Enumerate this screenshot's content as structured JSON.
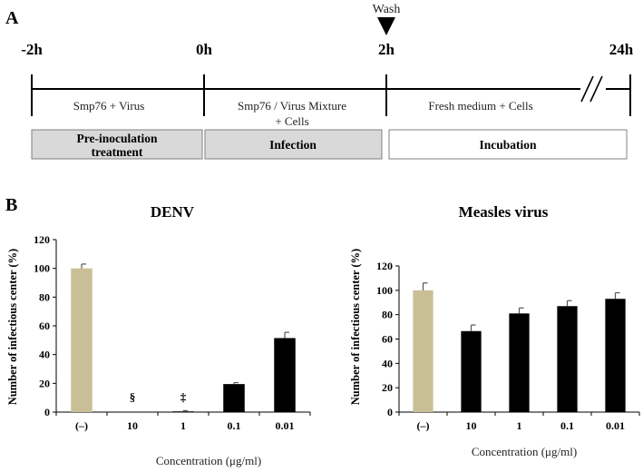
{
  "panel_a": {
    "label": "A",
    "wash_label": "Wash",
    "times": [
      "-2h",
      "0h",
      "2h",
      "24h"
    ],
    "segment_texts": [
      [
        "Smp76 + Virus"
      ],
      [
        "Smp76 / Virus Mixture",
        "+ Cells"
      ],
      [
        "Fresh medium + Cells"
      ]
    ],
    "phases": [
      {
        "lines": [
          "Pre-inoculation",
          "treatment"
        ],
        "fill": "#d9d9d9"
      },
      {
        "lines": [
          "Infection"
        ],
        "fill": "#d9d9d9"
      },
      {
        "lines": [
          "Incubation"
        ],
        "fill": "#ffffff"
      }
    ]
  },
  "panel_b": {
    "label": "B"
  },
  "colors": {
    "control": "#c9bf96",
    "treated": "#000000",
    "axis": "#000000"
  },
  "chart_data": [
    {
      "type": "bar",
      "title": "DENV",
      "categories": [
        "(–)",
        "10",
        "1",
        "0.1",
        "0.01"
      ],
      "values": [
        100,
        0,
        0.5,
        19.5,
        51.5
      ],
      "errors": [
        3,
        0,
        0.5,
        1,
        4
      ],
      "annotations": [
        "",
        "§",
        "‡",
        "",
        ""
      ],
      "ylabel": "Number of infectious center (%)",
      "xlabel": "Concentration (μg/ml)",
      "ylim": [
        0,
        120
      ],
      "yticks": [
        0,
        20,
        40,
        60,
        80,
        100,
        120
      ]
    },
    {
      "type": "bar",
      "title": "Measles virus",
      "categories": [
        "(–)",
        "10",
        "1",
        "0.1",
        "0.01"
      ],
      "values": [
        100,
        66.5,
        81,
        87,
        93
      ],
      "errors": [
        6,
        5,
        4.5,
        4.5,
        5
      ],
      "annotations": [
        "",
        "",
        "",
        "",
        ""
      ],
      "ylabel": "Number of infectious center (%)",
      "xlabel": "Concentration (μg/ml)",
      "ylim": [
        0,
        120
      ],
      "yticks": [
        0,
        20,
        40,
        60,
        80,
        100,
        120
      ]
    }
  ]
}
